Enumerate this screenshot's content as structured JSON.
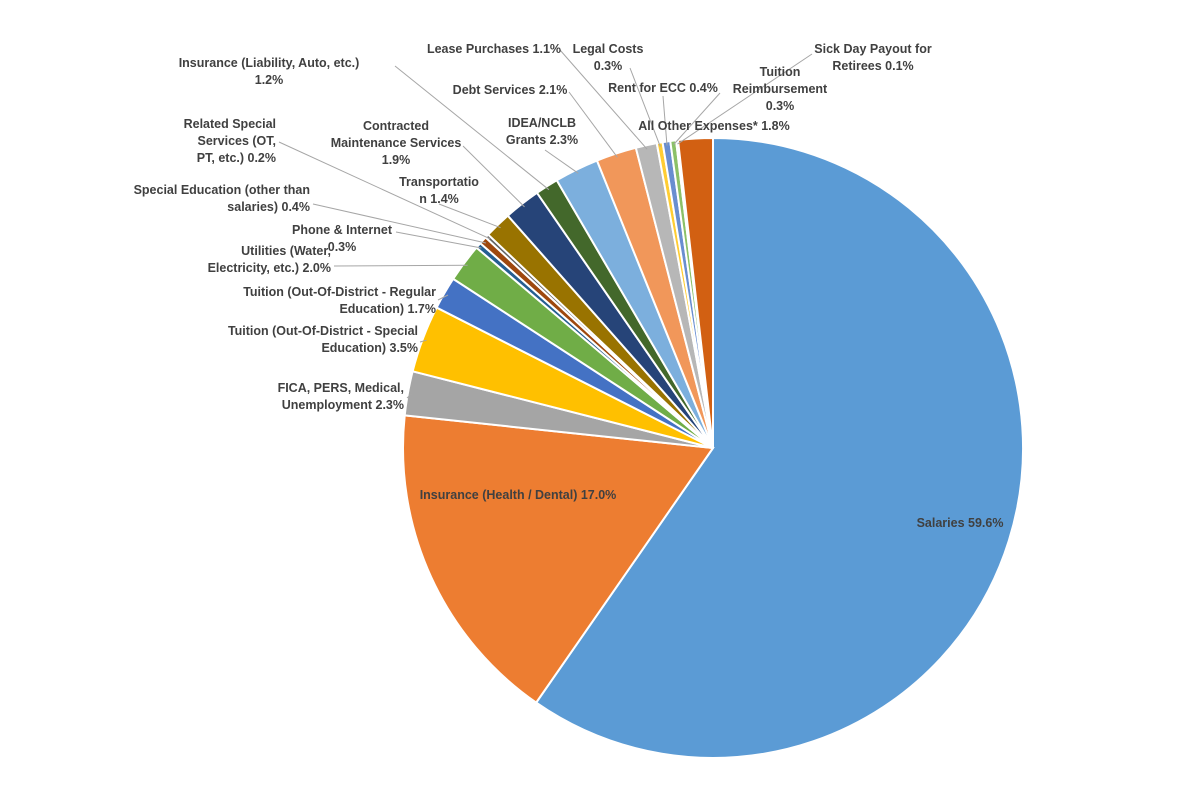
{
  "chart_data": {
    "type": "pie",
    "title": "",
    "start_angle_deg": 0,
    "direction": "clockwise",
    "slices": [
      {
        "label": "Salaries 59.6%",
        "name": "Salaries",
        "value": 59.6,
        "color": "#5b9bd5"
      },
      {
        "label": "Insurance (Health / Dental) 17.0%",
        "name": "Insurance (Health / Dental)",
        "value": 17.0,
        "color": "#ed7d31"
      },
      {
        "label": "FICA, PERS, Medical, Unemployment 2.3%",
        "name": "FICA, PERS, Medical, Unemployment",
        "value": 2.3,
        "color": "#a5a5a5"
      },
      {
        "label": "Tuition (Out-Of-District - Special Education) 3.5%",
        "name": "Tuition (Out-Of-District - Special Education)",
        "value": 3.5,
        "color": "#ffc000"
      },
      {
        "label": "Tuition (Out-Of-District - Regular Education) 1.7%",
        "name": "Tuition (Out-Of-District - Regular Education)",
        "value": 1.7,
        "color": "#4472c4"
      },
      {
        "label": "Utilities (Water, Electricity, etc.) 2.0%",
        "name": "Utilities (Water, Electricity, etc.)",
        "value": 2.0,
        "color": "#70ad47"
      },
      {
        "label": "Phone & Internet 0.3%",
        "name": "Phone & Internet",
        "value": 0.3,
        "color": "#255e91"
      },
      {
        "label": "Special Education (other than salaries) 0.4%",
        "name": "Special Education (other than salaries)",
        "value": 0.4,
        "color": "#9e480e"
      },
      {
        "label": "Related Special Services (OT, PT, etc.) 0.2%",
        "name": "Related Special Services (OT, PT, etc.)",
        "value": 0.2,
        "color": "#636363"
      },
      {
        "label": "Transportation 1.4%",
        "name": "Transportation",
        "value": 1.4,
        "color": "#997300"
      },
      {
        "label": "Contracted Maintenance Services 1.9%",
        "name": "Contracted Maintenance Services",
        "value": 1.9,
        "color": "#264478"
      },
      {
        "label": "Insurance (Liability, Auto, etc.) 1.2%",
        "name": "Insurance (Liability, Auto, etc.)",
        "value": 1.2,
        "color": "#43682b"
      },
      {
        "label": "IDEA/NCLB Grants 2.3%",
        "name": "IDEA/NCLB Grants",
        "value": 2.3,
        "color": "#7cafdd"
      },
      {
        "label": "Debt Services 2.1%",
        "name": "Debt Services",
        "value": 2.1,
        "color": "#f1975a"
      },
      {
        "label": "Lease Purchases 1.1%",
        "name": "Lease Purchases",
        "value": 1.1,
        "color": "#b7b7b7"
      },
      {
        "label": "Legal Costs 0.3%",
        "name": "Legal Costs",
        "value": 0.3,
        "color": "#ffcd33"
      },
      {
        "label": "Rent for ECC 0.4%",
        "name": "Rent for ECC",
        "value": 0.4,
        "color": "#698ed0"
      },
      {
        "label": "Tuition Reimbursement 0.3%",
        "name": "Tuition Reimbursement",
        "value": 0.3,
        "color": "#8cc168"
      },
      {
        "label": "Sick Day Payout for Retirees 0.1%",
        "name": "Sick Day Payout for Retirees",
        "value": 0.1,
        "color": "#327dc2"
      },
      {
        "label": "All Other Expenses* 1.8%",
        "name": "All Other Expenses*",
        "value": 1.8,
        "color": "#d26012"
      }
    ]
  }
}
